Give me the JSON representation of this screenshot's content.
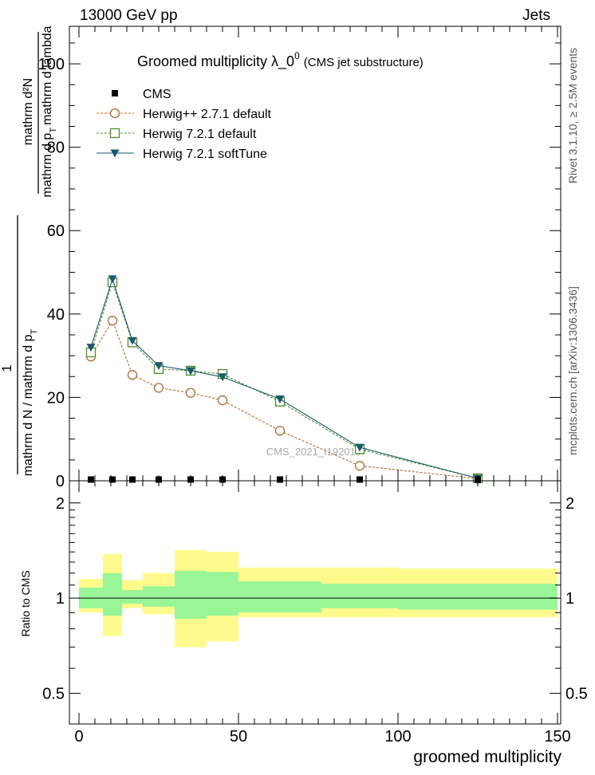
{
  "header": {
    "left": "13000 GeV pp",
    "right": "Jets"
  },
  "side_labels": {
    "rivet": "Rivet 3.1.10, ≥ 2.5M events",
    "mcplots": "mcplots.cern.ch [arXiv:1306.3436]"
  },
  "watermark": "CMS_2021_I1920187",
  "chart_data": {
    "type": "line",
    "title": "Groomed multiplicity  λ_0⁰ (CMS jet substructure)",
    "title_main": "Groomed multiplicity  λ_0",
    "title_sup": "0",
    "title_tail": "(CMS jet substructure)",
    "xlabel": "groomed multiplicity",
    "ylabel_top": "mathrm d²N",
    "ylabel_frac_num": "1",
    "ylabel_frac_den": "mathrm d N / mathrm d p",
    "ylabel_frac_den_sub": "T",
    "ylabel_top_den": "mathrm d p",
    "ylabel_top_den_sub": "T",
    "ylabel_top_den_tail": "mathrm d lambda",
    "ratio_ylabel": "Ratio to CMS",
    "xlim": [
      -3,
      151
    ],
    "ylim": [
      0,
      109
    ],
    "ratio_ylim": [
      0.4,
      2.35
    ],
    "x_ticks": [
      0,
      50,
      100,
      150
    ],
    "y_ticks": [
      0,
      20,
      40,
      60,
      80,
      100
    ],
    "ratio_ticks": [
      0.5,
      1,
      2
    ],
    "ratio_tick_labels": [
      "0.5",
      "1",
      "2"
    ],
    "bins": [
      [
        0,
        7.5
      ],
      [
        7.5,
        13.5
      ],
      [
        13.5,
        20
      ],
      [
        20,
        30
      ],
      [
        30,
        40
      ],
      [
        40,
        50
      ],
      [
        50,
        76
      ],
      [
        76,
        100
      ],
      [
        100,
        150
      ]
    ],
    "x": [
      3.75,
      10.5,
      16.75,
      25,
      35,
      45,
      63,
      88,
      125
    ],
    "series": [
      {
        "name": "CMS",
        "marker": "square-filled",
        "color": "#000000",
        "values": [
          0.3,
          0.3,
          0.3,
          0.3,
          0.3,
          0.3,
          0.3,
          0.3,
          0.3
        ]
      },
      {
        "name": "Herwig++ 2.7.1 default",
        "marker": "circle-open",
        "color": "#b36b2e",
        "dash": "3,2",
        "values": [
          29.8,
          38.4,
          25.4,
          22.3,
          21.1,
          19.3,
          12.0,
          3.6,
          0.5
        ]
      },
      {
        "name": "Herwig 7.2.1 default",
        "marker": "square-open",
        "color": "#4b8f2a",
        "dash": "3,2",
        "values": [
          30.8,
          47.6,
          33.2,
          26.8,
          26.4,
          25.6,
          19.0,
          7.6,
          0.6
        ]
      },
      {
        "name": "Herwig 7.2.1 softTune",
        "marker": "triangle-down-filled",
        "color": "#1b5a6e",
        "values": [
          32.0,
          48.4,
          33.6,
          27.6,
          26.4,
          24.9,
          19.6,
          8.0,
          0.6
        ]
      }
    ],
    "ratio_bands": {
      "inner": [
        [
          0.93,
          1.08
        ],
        [
          0.88,
          1.2
        ],
        [
          0.96,
          1.06
        ],
        [
          0.94,
          1.09
        ],
        [
          0.86,
          1.22
        ],
        [
          0.88,
          1.21
        ],
        [
          0.9,
          1.13
        ],
        [
          0.93,
          1.11
        ],
        [
          0.92,
          1.11
        ]
      ],
      "outer": [
        [
          0.9,
          1.15
        ],
        [
          0.76,
          1.38
        ],
        [
          0.93,
          1.14
        ],
        [
          0.89,
          1.2
        ],
        [
          0.7,
          1.42
        ],
        [
          0.73,
          1.4
        ],
        [
          0.87,
          1.25
        ],
        [
          0.87,
          1.25
        ],
        [
          0.87,
          1.24
        ]
      ],
      "inner_color": "#98f696",
      "outer_color": "#fefb8c"
    },
    "grid": false,
    "legend_position": "top-left"
  }
}
